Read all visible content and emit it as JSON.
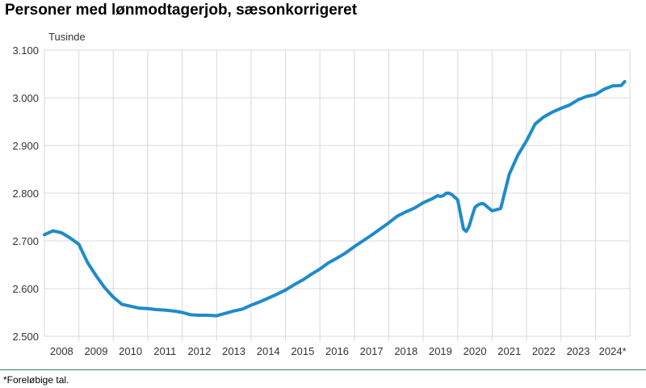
{
  "title": "Personer med lønmodtagerjob, sæsonkorrigeret",
  "footnote": "*Foreløbige tal.",
  "chart_data": {
    "type": "line",
    "ylabel": "Tusinde",
    "ylim": [
      2500,
      3100
    ],
    "yticks": [
      2500,
      2600,
      2700,
      2800,
      2900,
      3000,
      3100
    ],
    "ytick_labels": [
      "2.500",
      "2.600",
      "2.700",
      "2.800",
      "2.900",
      "3.000",
      "3.100"
    ],
    "xlim": [
      2008.0,
      2025.0
    ],
    "categories": [
      "2008",
      "2009",
      "2010",
      "2011",
      "2012",
      "2013",
      "2014",
      "2015",
      "2016",
      "2017",
      "2018",
      "2019",
      "2020",
      "2021",
      "2022",
      "2023",
      "2024*"
    ],
    "grid": true,
    "line_color": "#1f8bc9",
    "series": [
      {
        "x": [
          2008.0,
          2008.25,
          2008.5,
          2008.75,
          2009.0,
          2009.25,
          2009.5,
          2009.75,
          2010.0,
          2010.25,
          2010.5,
          2010.75,
          2011.0,
          2011.25,
          2011.5,
          2011.75,
          2012.0,
          2012.25,
          2012.5,
          2012.75,
          2013.0,
          2013.25,
          2013.5,
          2013.75,
          2014.0,
          2014.25,
          2014.5,
          2014.75,
          2015.0,
          2015.25,
          2015.5,
          2015.75,
          2016.0,
          2016.25,
          2016.5,
          2016.75,
          2017.0,
          2017.25,
          2017.5,
          2017.75,
          2018.0,
          2018.25,
          2018.5,
          2018.75,
          2019.0,
          2019.25,
          2019.42,
          2019.5,
          2019.58,
          2019.67,
          2019.75,
          2019.83,
          2020.0,
          2020.17,
          2020.25,
          2020.33,
          2020.42,
          2020.5,
          2020.58,
          2020.67,
          2020.75,
          2021.0,
          2021.25,
          2021.5,
          2021.75,
          2022.0,
          2022.25,
          2022.5,
          2022.75,
          2023.0,
          2023.25,
          2023.5,
          2023.75,
          2024.0,
          2024.25,
          2024.5,
          2024.75,
          2024.85
        ],
        "values": [
          2713,
          2721,
          2717,
          2706,
          2693,
          2655,
          2627,
          2602,
          2582,
          2567,
          2563,
          2559,
          2558,
          2556,
          2555,
          2553,
          2550,
          2545,
          2544,
          2544,
          2543,
          2548,
          2553,
          2557,
          2565,
          2572,
          2580,
          2588,
          2597,
          2608,
          2618,
          2630,
          2641,
          2654,
          2664,
          2675,
          2688,
          2700,
          2712,
          2725,
          2738,
          2752,
          2761,
          2769,
          2780,
          2788,
          2795,
          2793,
          2795,
          2800,
          2800,
          2797,
          2786,
          2725,
          2720,
          2730,
          2752,
          2770,
          2775,
          2778,
          2778,
          2763,
          2768,
          2840,
          2880,
          2910,
          2945,
          2960,
          2970,
          2978,
          2985,
          2996,
          3003,
          3007,
          3018,
          3025,
          3026,
          3034
        ]
      }
    ]
  }
}
